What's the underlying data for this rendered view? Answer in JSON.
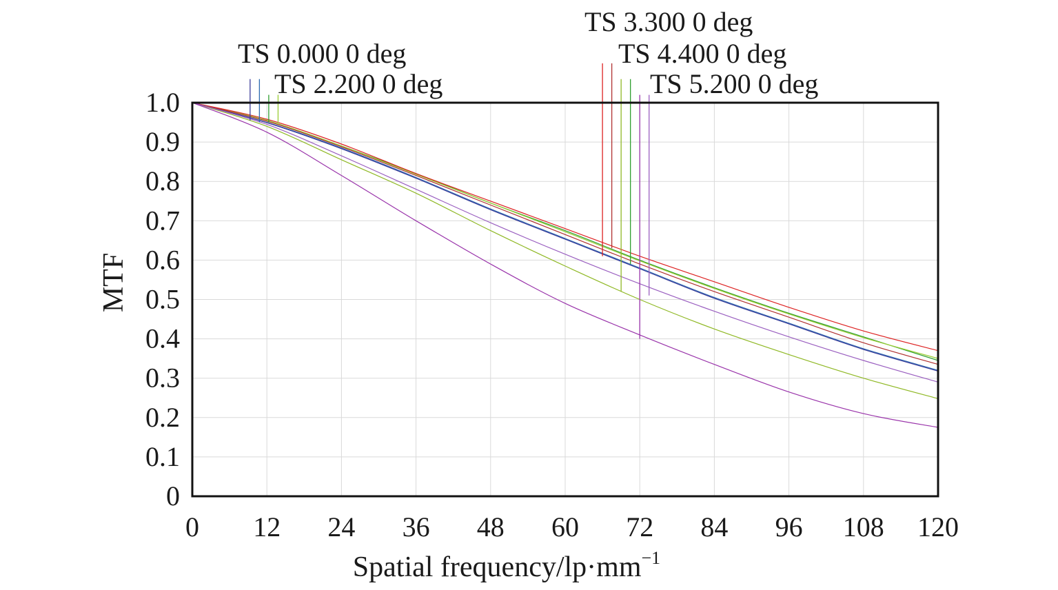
{
  "chart_data": {
    "type": "line",
    "title": "",
    "xlabel": "Spatial frequency/lp·mm",
    "xlabel_sup": "−1",
    "ylabel": "MTF",
    "xlim": [
      0,
      120
    ],
    "ylim": [
      0,
      1
    ],
    "x_ticks": [
      0,
      12,
      24,
      36,
      48,
      60,
      72,
      84,
      96,
      108,
      120
    ],
    "y_ticks": [
      0,
      0.1,
      0.2,
      0.3,
      0.4,
      0.5,
      0.6,
      0.7,
      0.8,
      0.9,
      1.0
    ],
    "x_tick_labels": [
      "0",
      "12",
      "24",
      "36",
      "48",
      "60",
      "72",
      "84",
      "96",
      "108",
      "120"
    ],
    "y_tick_labels": [
      "0",
      "0.1",
      "0.2",
      "0.3",
      "0.4",
      "0.5",
      "0.6",
      "0.7",
      "0.8",
      "0.9",
      "1.0"
    ],
    "grid": true,
    "x": [
      0,
      12,
      24,
      36,
      48,
      60,
      72,
      84,
      96,
      108,
      120
    ],
    "series": [
      {
        "color": "#2d6bb0",
        "values": [
          1.0,
          0.95,
          0.885,
          0.81,
          0.73,
          0.655,
          0.58,
          0.505,
          0.44,
          0.375,
          0.32
        ]
      },
      {
        "color": "#3b3b9a",
        "values": [
          1.0,
          0.949,
          0.883,
          0.808,
          0.728,
          0.653,
          0.578,
          0.503,
          0.438,
          0.373,
          0.318
        ]
      },
      {
        "color": "#2e9e2e",
        "values": [
          1.0,
          0.955,
          0.89,
          0.82,
          0.745,
          0.675,
          0.6,
          0.53,
          0.465,
          0.405,
          0.345
        ]
      },
      {
        "color": "#9acd32",
        "values": [
          1.0,
          0.955,
          0.89,
          0.818,
          0.745,
          0.672,
          0.598,
          0.528,
          0.463,
          0.403,
          0.35
        ]
      },
      {
        "color": "#dd2222",
        "values": [
          1.0,
          0.958,
          0.895,
          0.82,
          0.75,
          0.68,
          0.61,
          0.545,
          0.48,
          0.42,
          0.37
        ]
      },
      {
        "color": "#b03030",
        "values": [
          1.0,
          0.953,
          0.888,
          0.815,
          0.74,
          0.665,
          0.59,
          0.52,
          0.455,
          0.39,
          0.335
        ]
      },
      {
        "color": "#8fb824",
        "values": [
          1.0,
          0.94,
          0.855,
          0.77,
          0.675,
          0.585,
          0.5,
          0.425,
          0.36,
          0.3,
          0.248
        ]
      },
      {
        "color": "#9a5fc0",
        "values": [
          1.0,
          0.945,
          0.865,
          0.78,
          0.695,
          0.615,
          0.54,
          0.47,
          0.405,
          0.345,
          0.29
        ]
      },
      {
        "color": "#9933aa",
        "values": [
          1.0,
          0.925,
          0.815,
          0.7,
          0.59,
          0.49,
          0.41,
          0.335,
          0.265,
          0.21,
          0.175
        ]
      }
    ],
    "annotations": [
      {
        "text": "TS 0.000 0 deg"
      },
      {
        "text": "TS 2.200 0 deg"
      },
      {
        "text": "TS 3.300 0 deg"
      },
      {
        "text": "TS 4.400 0 deg"
      },
      {
        "text": "TS 5.200 0 deg"
      }
    ],
    "markers": [
      {
        "x": 9.3,
        "y_top": 1.06,
        "y_bottom": 0.955,
        "color": "#3b3b9a"
      },
      {
        "x": 10.8,
        "y_top": 1.06,
        "y_bottom": 0.95,
        "color": "#2d6bb0"
      },
      {
        "x": 12.3,
        "y_top": 1.02,
        "y_bottom": 0.95,
        "color": "#2e9e2e"
      },
      {
        "x": 13.8,
        "y_top": 1.02,
        "y_bottom": 0.948,
        "color": "#9acd32"
      },
      {
        "x": 66.0,
        "y_top": 1.1,
        "y_bottom": 0.61,
        "color": "#dd2222"
      },
      {
        "x": 67.5,
        "y_top": 1.1,
        "y_bottom": 0.63,
        "color": "#b03030"
      },
      {
        "x": 69.0,
        "y_top": 1.06,
        "y_bottom": 0.52,
        "color": "#8fb824"
      },
      {
        "x": 70.5,
        "y_top": 1.06,
        "y_bottom": 0.59,
        "color": "#2e9e2e"
      },
      {
        "x": 72.0,
        "y_top": 1.02,
        "y_bottom": 0.4,
        "color": "#9933aa"
      },
      {
        "x": 73.5,
        "y_top": 1.02,
        "y_bottom": 0.51,
        "color": "#9a5fc0"
      }
    ]
  }
}
